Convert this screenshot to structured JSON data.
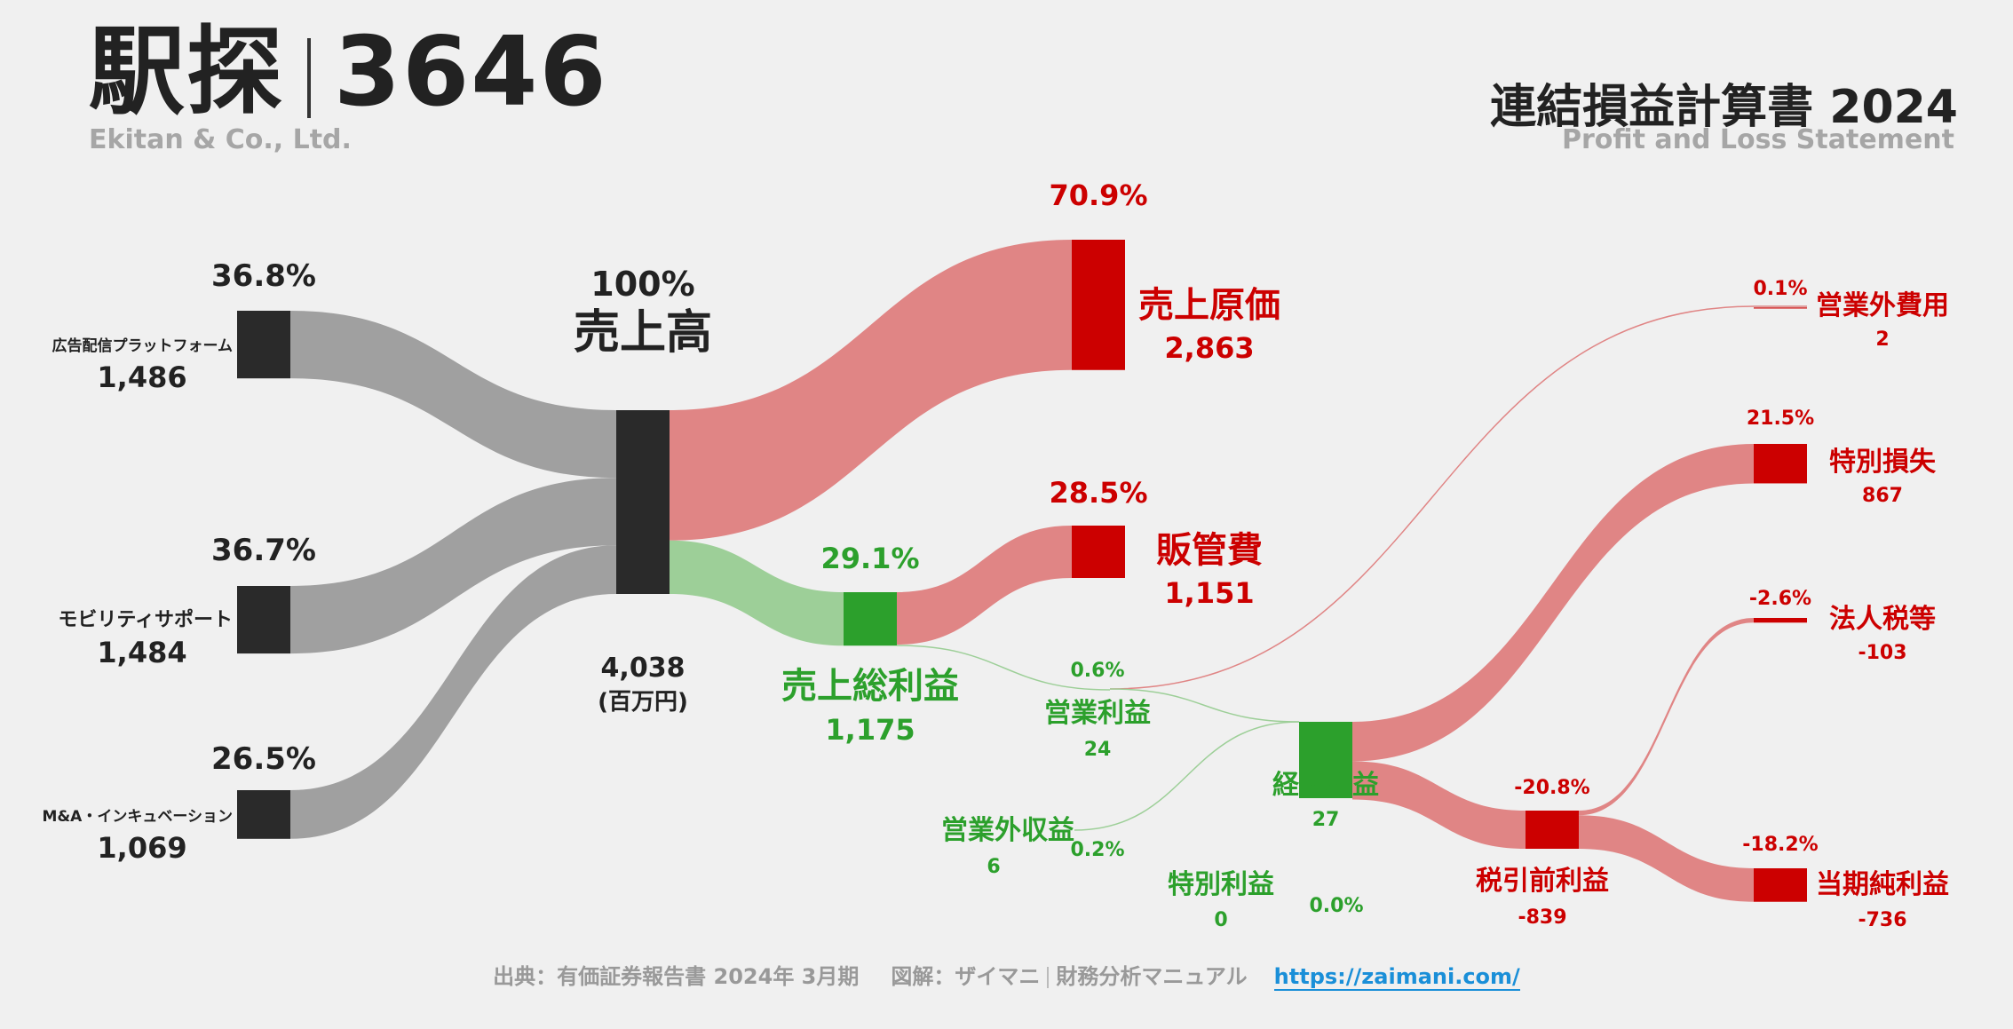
{
  "header": {
    "company_name": "駅探",
    "ticker": "3646",
    "company_en": "Ekitan & Co., Ltd.",
    "statement_title": "連結損益計算書 2024",
    "statement_en": "Profit and Loss Statement"
  },
  "footer": {
    "source": "出典：有価証券報告書 2024年 3月期",
    "credit": "図解：ザイマニ",
    "site_name": "財務分析マニュアル",
    "url": "https://zaimani.com/"
  },
  "colors": {
    "segment": "#2a2a2a",
    "segment_flow": "#a0a0a0",
    "revenue": "#2a2a2a",
    "profit": "#2ca02c",
    "profit_flow": "#9dcf98",
    "cost": "#cc0000",
    "cost_flow": "#e08585",
    "text_dark": "#222222"
  },
  "chart_data": {
    "type": "sankey",
    "title": "連結損益計算書 2024",
    "unit": "(百万円)",
    "nodes": [
      {
        "id": "seg_ad",
        "label": "広告配信プラットフォーム",
        "value": 1486,
        "value_label": "1,486",
        "pct": "36.8%",
        "kind": "segment"
      },
      {
        "id": "seg_mob",
        "label": "モビリティサポート",
        "value": 1484,
        "value_label": "1,484",
        "pct": "36.7%",
        "kind": "segment"
      },
      {
        "id": "seg_ma",
        "label": "M&A・インキュベーション",
        "value": 1069,
        "value_label": "1,069",
        "pct": "26.5%",
        "kind": "segment"
      },
      {
        "id": "revenue",
        "label": "売上高",
        "value": 4038,
        "value_label": "4,038",
        "pct": "100%",
        "kind": "revenue"
      },
      {
        "id": "cogs",
        "label": "売上原価",
        "value": 2863,
        "value_label": "2,863",
        "pct": "70.9%",
        "kind": "cost"
      },
      {
        "id": "gross",
        "label": "売上総利益",
        "value": 1175,
        "value_label": "1,175",
        "pct": "29.1%",
        "kind": "profit"
      },
      {
        "id": "sga",
        "label": "販管費",
        "value": 1151,
        "value_label": "1,151",
        "pct": "28.5%",
        "kind": "cost"
      },
      {
        "id": "op",
        "label": "営業利益",
        "value": 24,
        "value_label": "24",
        "pct": "0.6%",
        "kind": "profit"
      },
      {
        "id": "nonop_inc",
        "label": "営業外収益",
        "value": 6,
        "value_label": "6",
        "pct": "0.2%",
        "kind": "profit"
      },
      {
        "id": "nonop_exp",
        "label": "営業外費用",
        "value": 2,
        "value_label": "2",
        "pct": "0.1%",
        "kind": "cost"
      },
      {
        "id": "ordinary",
        "label": "経常利益",
        "value": 27,
        "value_label": "27",
        "pct": "",
        "kind": "profit"
      },
      {
        "id": "sp_gain",
        "label": "特別利益",
        "value": 0,
        "value_label": "0",
        "pct": "0.0%",
        "kind": "profit"
      },
      {
        "id": "sp_loss",
        "label": "特別損失",
        "value": 867,
        "value_label": "867",
        "pct": "21.5%",
        "kind": "cost"
      },
      {
        "id": "pretax",
        "label": "税引前利益",
        "value": -839,
        "value_label": "-839",
        "pct": "-20.8%",
        "kind": "cost"
      },
      {
        "id": "tax",
        "label": "法人税等",
        "value": -103,
        "value_label": "-103",
        "pct": "-2.6%",
        "kind": "cost"
      },
      {
        "id": "net",
        "label": "当期純利益",
        "value": -736,
        "value_label": "-736",
        "pct": "-18.2%",
        "kind": "cost"
      }
    ],
    "links": [
      {
        "source": "seg_ad",
        "target": "revenue",
        "value": 1486
      },
      {
        "source": "seg_mob",
        "target": "revenue",
        "value": 1484
      },
      {
        "source": "seg_ma",
        "target": "revenue",
        "value": 1069
      },
      {
        "source": "revenue",
        "target": "cogs",
        "value": 2863
      },
      {
        "source": "revenue",
        "target": "gross",
        "value": 1175
      },
      {
        "source": "gross",
        "target": "sga",
        "value": 1151
      },
      {
        "source": "gross",
        "target": "op",
        "value": 24
      },
      {
        "source": "op",
        "target": "nonop_exp",
        "value": 2
      },
      {
        "source": "op",
        "target": "ordinary",
        "value": 22
      },
      {
        "source": "nonop_inc",
        "target": "ordinary",
        "value": 6
      },
      {
        "source": "ordinary",
        "target": "sp_loss",
        "value": 867
      },
      {
        "source": "ordinary",
        "target": "pretax",
        "value": 839
      },
      {
        "source": "pretax",
        "target": "tax",
        "value": 103
      },
      {
        "source": "pretax",
        "target": "net",
        "value": 736
      }
    ]
  }
}
